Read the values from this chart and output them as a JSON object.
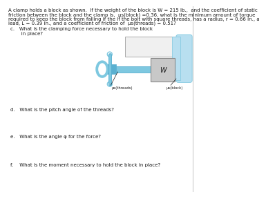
{
  "line1": "A clamp holds a block as shown.  If the weight of the block is W = 215 lb.,  and the coefficient of static",
  "line2": "friction between the block and the clamp is,  μs(block) =0.36, what is the minimum amount of torque",
  "line3": "required to keep the block from falling if the If the bolt with square threads, has a radius, r = 0.66 in., a",
  "line4": "lead, L = 0.39 in., and a coefficient of friction of  μs(threads) = 0.51?",
  "question_c": "c.   What is the clamping force necessary to hold the block\n       in place?",
  "question_d": "d.   What is the pitch angle of the threads?",
  "question_e": "e.   What is the angle φ for the force?",
  "question_f": "f.    What is the moment necessary to hold the block in place?",
  "label_threads": "μs(threads)",
  "label_block": "μs(block)",
  "label_W": "W",
  "bg_color": "#ffffff",
  "text_color": "#1a1a1a",
  "clamp_light": "#b8dff0",
  "clamp_mid": "#7ec8e0",
  "clamp_dark": "#5ab0d0",
  "block_fill": "#c8c8c8",
  "block_edge": "#888888",
  "white_fill": "#f0f0f0",
  "white_edge": "#aaaaaa"
}
